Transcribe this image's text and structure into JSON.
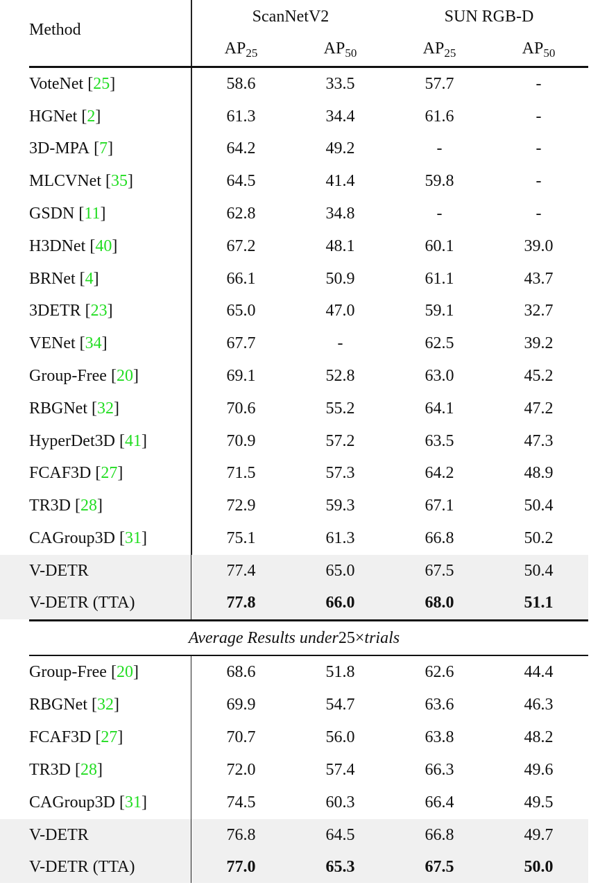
{
  "header": {
    "method": "Method",
    "groups": [
      "ScanNetV2",
      "SUN RGB-D"
    ],
    "metrics": [
      {
        "base": "AP",
        "sub": "25"
      },
      {
        "base": "AP",
        "sub": "50"
      },
      {
        "base": "AP",
        "sub": "25"
      },
      {
        "base": "AP",
        "sub": "50"
      }
    ]
  },
  "section1": [
    {
      "name": "VoteNet",
      "cite": "25",
      "values": [
        "58.6",
        "33.5",
        "57.7",
        "-"
      ]
    },
    {
      "name": "HGNet",
      "cite": "2",
      "values": [
        "61.3",
        "34.4",
        "61.6",
        "-"
      ]
    },
    {
      "name": "3D-MPA",
      "cite": "7",
      "values": [
        "64.2",
        "49.2",
        "-",
        "-"
      ]
    },
    {
      "name": "MLCVNet",
      "cite": "35",
      "values": [
        "64.5",
        "41.4",
        "59.8",
        "-"
      ]
    },
    {
      "name": "GSDN",
      "cite": "11",
      "values": [
        "62.8",
        "34.8",
        "-",
        "-"
      ]
    },
    {
      "name": "H3DNet",
      "cite": "40",
      "values": [
        "67.2",
        "48.1",
        "60.1",
        "39.0"
      ]
    },
    {
      "name": "BRNet",
      "cite": "4",
      "values": [
        "66.1",
        "50.9",
        "61.1",
        "43.7"
      ]
    },
    {
      "name": "3DETR",
      "cite": "23",
      "values": [
        "65.0",
        "47.0",
        "59.1",
        "32.7"
      ]
    },
    {
      "name": "VENet",
      "cite": "34",
      "values": [
        "67.7",
        "-",
        "62.5",
        "39.2"
      ]
    },
    {
      "name": "Group-Free",
      "cite": "20",
      "values": [
        "69.1",
        "52.8",
        "63.0",
        "45.2"
      ]
    },
    {
      "name": "RBGNet",
      "cite": "32",
      "values": [
        "70.6",
        "55.2",
        "64.1",
        "47.2"
      ]
    },
    {
      "name": "HyperDet3D",
      "cite": "41",
      "values": [
        "70.9",
        "57.2",
        "63.5",
        "47.3"
      ]
    },
    {
      "name": "FCAF3D",
      "cite": "27",
      "values": [
        "71.5",
        "57.3",
        "64.2",
        "48.9"
      ]
    },
    {
      "name": "TR3D",
      "cite": "28",
      "values": [
        "72.9",
        "59.3",
        "67.1",
        "50.4"
      ]
    },
    {
      "name": "CAGroup3D",
      "cite": "31",
      "values": [
        "75.1",
        "61.3",
        "66.8",
        "50.2"
      ]
    },
    {
      "name": "V-DETR",
      "values": [
        "77.4",
        "65.0",
        "67.5",
        "50.4"
      ],
      "highlight": true
    },
    {
      "name": "V-DETR (TTA)",
      "values": [
        "77.8",
        "66.0",
        "68.0",
        "51.1"
      ],
      "highlight": true,
      "bold": true
    }
  ],
  "section2_title": {
    "pre": "Average Results under ",
    "num": "25×",
    "post": " trials"
  },
  "section2": [
    {
      "name": "Group-Free",
      "cite": "20",
      "values": [
        "68.6",
        "51.8",
        "62.6",
        "44.4"
      ]
    },
    {
      "name": "RBGNet",
      "cite": "32",
      "values": [
        "69.9",
        "54.7",
        "63.6",
        "46.3"
      ]
    },
    {
      "name": "FCAF3D",
      "cite": "27",
      "values": [
        "70.7",
        "56.0",
        "63.8",
        "48.2"
      ]
    },
    {
      "name": "TR3D",
      "cite": "28",
      "values": [
        "72.0",
        "57.4",
        "66.3",
        "49.6"
      ]
    },
    {
      "name": "CAGroup3D",
      "cite": "31",
      "values": [
        "74.5",
        "60.3",
        "66.4",
        "49.5"
      ]
    },
    {
      "name": "V-DETR",
      "values": [
        "76.8",
        "64.5",
        "66.8",
        "49.7"
      ],
      "highlight": true
    },
    {
      "name": "V-DETR (TTA)",
      "values": [
        "77.0",
        "65.3",
        "67.5",
        "50.0"
      ],
      "highlight": true,
      "bold": true
    }
  ]
}
